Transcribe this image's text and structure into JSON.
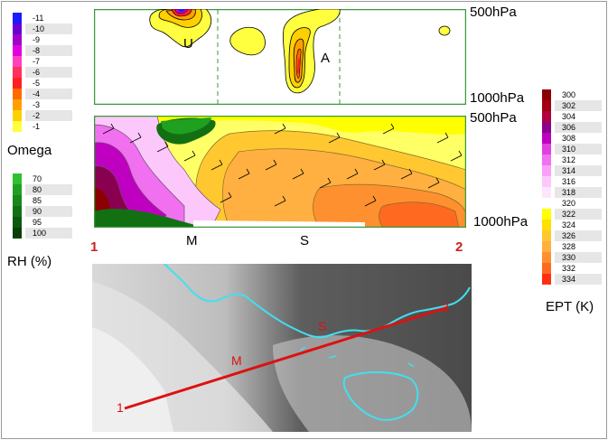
{
  "pressure_labels": {
    "top_upper": "500hPa",
    "top_lower": "1000hPa",
    "bottom_upper": "500hPa",
    "bottom_lower": "1000hPa"
  },
  "section_letters": {
    "u": "U",
    "a": "A",
    "m": "M",
    "s": "S"
  },
  "endpoints": {
    "left": "1",
    "right": "2"
  },
  "omega_legend": {
    "title": "Omega",
    "entries": [
      {
        "value": "-11",
        "color": "#1a1aff"
      },
      {
        "value": "-10",
        "color": "#6a00d0"
      },
      {
        "value": "-9",
        "color": "#a000c8"
      },
      {
        "value": "-8",
        "color": "#e000e0"
      },
      {
        "value": "-7",
        "color": "#ff40c0"
      },
      {
        "value": "-6",
        "color": "#ff3060"
      },
      {
        "value": "-5",
        "color": "#ff2020"
      },
      {
        "value": "-4",
        "color": "#ff6a00"
      },
      {
        "value": "-3",
        "color": "#ffa000"
      },
      {
        "value": "-2",
        "color": "#ffd000"
      },
      {
        "value": "-1",
        "color": "#ffff40"
      }
    ]
  },
  "rh_legend": {
    "title": "RH (%)",
    "entries": [
      {
        "value": "70",
        "color": "#30c030"
      },
      {
        "value": "80",
        "color": "#20a020"
      },
      {
        "value": "85",
        "color": "#188818"
      },
      {
        "value": "90",
        "color": "#127012"
      },
      {
        "value": "95",
        "color": "#0c580c"
      },
      {
        "value": "100",
        "color": "#064006"
      }
    ]
  },
  "ept_legend": {
    "title": "EPT (K)",
    "entries": [
      {
        "value": "300",
        "color": "#8b0000"
      },
      {
        "value": "302",
        "color": "#a00010"
      },
      {
        "value": "304",
        "color": "#b00040"
      },
      {
        "value": "306",
        "color": "#8a008a"
      },
      {
        "value": "308",
        "color": "#c000c0"
      },
      {
        "value": "310",
        "color": "#e040e0"
      },
      {
        "value": "312",
        "color": "#f070f0"
      },
      {
        "value": "314",
        "color": "#f8a0f8"
      },
      {
        "value": "316",
        "color": "#fcc8fc"
      },
      {
        "value": "318",
        "color": "#fde6fd"
      },
      {
        "value": "320",
        "color": "#ffffff"
      },
      {
        "value": "322",
        "color": "#ffff00"
      },
      {
        "value": "324",
        "color": "#ffe000"
      },
      {
        "value": "326",
        "color": "#ffc830"
      },
      {
        "value": "328",
        "color": "#ffb040"
      },
      {
        "value": "330",
        "color": "#ff9030"
      },
      {
        "value": "332",
        "color": "#ff6a20"
      },
      {
        "value": "334",
        "color": "#ff3010"
      }
    ]
  },
  "colors": {
    "frame": "#3a9a3a",
    "transect": "#dd1111",
    "coast": "#40e0f0"
  }
}
